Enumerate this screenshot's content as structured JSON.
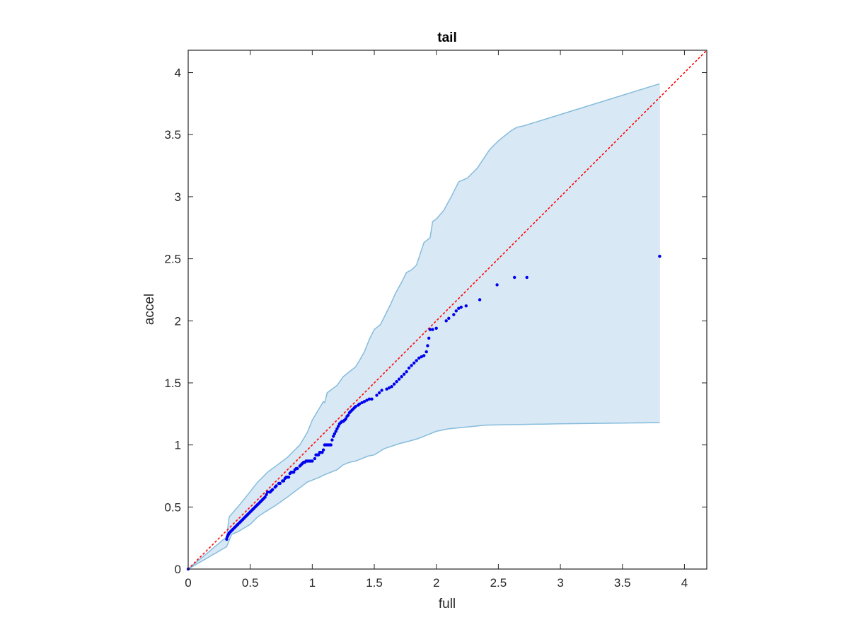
{
  "chart_data": {
    "type": "scatter",
    "title": "tail",
    "xlabel": "full",
    "ylabel": "accel",
    "xlim": [
      0,
      4.18
    ],
    "ylim": [
      0,
      4.18
    ],
    "xticks": [
      0,
      0.5,
      1,
      1.5,
      2,
      2.5,
      3,
      3.5,
      4
    ],
    "yticks": [
      0,
      0.5,
      1,
      1.5,
      2,
      2.5,
      3,
      3.5,
      4
    ],
    "xtick_labels": [
      "0",
      "0.5",
      "1",
      "1.5",
      "2",
      "2.5",
      "3",
      "3.5",
      "4"
    ],
    "ytick_labels": [
      "0",
      "0.5",
      "1",
      "1.5",
      "2",
      "2.5",
      "3",
      "3.5",
      "4"
    ],
    "grid": false,
    "colors": {
      "points": "#0000ee",
      "band_fill": "#d8e8f4",
      "band_edge": "#86bcdc",
      "reference_line": "#ff0000",
      "axes": "#262626"
    },
    "reference_line": {
      "style": "dotted",
      "x": [
        0,
        4.18
      ],
      "y": [
        0,
        4.18
      ]
    },
    "band_upper": [
      [
        0,
        0
      ],
      [
        0.31,
        0.26
      ],
      [
        0.33,
        0.42
      ],
      [
        0.4,
        0.5
      ],
      [
        0.48,
        0.6
      ],
      [
        0.56,
        0.7
      ],
      [
        0.64,
        0.78
      ],
      [
        0.72,
        0.84
      ],
      [
        0.8,
        0.9
      ],
      [
        0.9,
        1.0
      ],
      [
        0.96,
        1.1
      ],
      [
        1.0,
        1.2
      ],
      [
        1.09,
        1.35
      ],
      [
        1.1,
        1.34
      ],
      [
        1.12,
        1.42
      ],
      [
        1.2,
        1.48
      ],
      [
        1.25,
        1.55
      ],
      [
        1.35,
        1.63
      ],
      [
        1.38,
        1.68
      ],
      [
        1.42,
        1.75
      ],
      [
        1.46,
        1.85
      ],
      [
        1.5,
        1.93
      ],
      [
        1.55,
        1.97
      ],
      [
        1.63,
        2.13
      ],
      [
        1.67,
        2.22
      ],
      [
        1.72,
        2.31
      ],
      [
        1.76,
        2.39
      ],
      [
        1.8,
        2.41
      ],
      [
        1.84,
        2.45
      ],
      [
        1.9,
        2.63
      ],
      [
        1.95,
        2.67
      ],
      [
        1.97,
        2.8
      ],
      [
        2.0,
        2.82
      ],
      [
        2.06,
        2.89
      ],
      [
        2.12,
        3.0
      ],
      [
        2.18,
        3.12
      ],
      [
        2.25,
        3.15
      ],
      [
        2.33,
        3.23
      ],
      [
        2.43,
        3.38
      ],
      [
        2.5,
        3.45
      ],
      [
        2.6,
        3.53
      ],
      [
        2.65,
        3.56
      ],
      [
        2.7,
        3.57
      ],
      [
        3.8,
        3.91
      ]
    ],
    "band_lower": [
      [
        0,
        0
      ],
      [
        0.31,
        0.18
      ],
      [
        0.35,
        0.28
      ],
      [
        0.4,
        0.3
      ],
      [
        0.45,
        0.33
      ],
      [
        0.5,
        0.36
      ],
      [
        0.56,
        0.42
      ],
      [
        0.62,
        0.46
      ],
      [
        0.7,
        0.51
      ],
      [
        0.8,
        0.58
      ],
      [
        0.88,
        0.64
      ],
      [
        0.96,
        0.7
      ],
      [
        1.06,
        0.74
      ],
      [
        1.1,
        0.76
      ],
      [
        1.2,
        0.8
      ],
      [
        1.25,
        0.84
      ],
      [
        1.3,
        0.86
      ],
      [
        1.35,
        0.87
      ],
      [
        1.4,
        0.89
      ],
      [
        1.45,
        0.91
      ],
      [
        1.5,
        0.92
      ],
      [
        1.58,
        0.97
      ],
      [
        1.64,
        0.99
      ],
      [
        1.7,
        1.01
      ],
      [
        1.78,
        1.03
      ],
      [
        1.85,
        1.05
      ],
      [
        1.9,
        1.07
      ],
      [
        1.95,
        1.09
      ],
      [
        2.0,
        1.11
      ],
      [
        2.1,
        1.13
      ],
      [
        2.4,
        1.16
      ],
      [
        3.0,
        1.17
      ],
      [
        3.8,
        1.18
      ]
    ],
    "points": [
      [
        0.0,
        0.0
      ],
      [
        0.31,
        0.24
      ],
      [
        0.315,
        0.26
      ],
      [
        0.32,
        0.27
      ],
      [
        0.325,
        0.28
      ],
      [
        0.33,
        0.29
      ],
      [
        0.34,
        0.3
      ],
      [
        0.35,
        0.31
      ],
      [
        0.36,
        0.32
      ],
      [
        0.37,
        0.33
      ],
      [
        0.38,
        0.34
      ],
      [
        0.39,
        0.35
      ],
      [
        0.4,
        0.36
      ],
      [
        0.41,
        0.37
      ],
      [
        0.42,
        0.38
      ],
      [
        0.43,
        0.39
      ],
      [
        0.44,
        0.4
      ],
      [
        0.45,
        0.41
      ],
      [
        0.46,
        0.42
      ],
      [
        0.47,
        0.43
      ],
      [
        0.48,
        0.44
      ],
      [
        0.49,
        0.45
      ],
      [
        0.5,
        0.46
      ],
      [
        0.51,
        0.47
      ],
      [
        0.52,
        0.48
      ],
      [
        0.53,
        0.49
      ],
      [
        0.54,
        0.5
      ],
      [
        0.55,
        0.51
      ],
      [
        0.56,
        0.52
      ],
      [
        0.57,
        0.53
      ],
      [
        0.58,
        0.54
      ],
      [
        0.59,
        0.55
      ],
      [
        0.6,
        0.56
      ],
      [
        0.61,
        0.57
      ],
      [
        0.62,
        0.58
      ],
      [
        0.63,
        0.6
      ],
      [
        0.64,
        0.62
      ],
      [
        0.66,
        0.62
      ],
      [
        0.67,
        0.63
      ],
      [
        0.68,
        0.64
      ],
      [
        0.7,
        0.66
      ],
      [
        0.71,
        0.67
      ],
      [
        0.73,
        0.69
      ],
      [
        0.74,
        0.69
      ],
      [
        0.76,
        0.71
      ],
      [
        0.77,
        0.71
      ],
      [
        0.78,
        0.73
      ],
      [
        0.79,
        0.74
      ],
      [
        0.8,
        0.74
      ],
      [
        0.81,
        0.74
      ],
      [
        0.82,
        0.77
      ],
      [
        0.83,
        0.78
      ],
      [
        0.84,
        0.78
      ],
      [
        0.85,
        0.78
      ],
      [
        0.86,
        0.8
      ],
      [
        0.87,
        0.81
      ],
      [
        0.88,
        0.81
      ],
      [
        0.9,
        0.83
      ],
      [
        0.91,
        0.84
      ],
      [
        0.92,
        0.85
      ],
      [
        0.93,
        0.86
      ],
      [
        0.94,
        0.86
      ],
      [
        0.95,
        0.87
      ],
      [
        0.96,
        0.87
      ],
      [
        0.97,
        0.87
      ],
      [
        0.98,
        0.87
      ],
      [
        0.99,
        0.87
      ],
      [
        1.0,
        0.87
      ],
      [
        1.02,
        0.89
      ],
      [
        1.03,
        0.92
      ],
      [
        1.04,
        0.92
      ],
      [
        1.05,
        0.92
      ],
      [
        1.06,
        0.94
      ],
      [
        1.07,
        0.94
      ],
      [
        1.08,
        0.94
      ],
      [
        1.09,
        0.96
      ],
      [
        1.1,
        1.0
      ],
      [
        1.11,
        1.0
      ],
      [
        1.12,
        1.0
      ],
      [
        1.13,
        1.0
      ],
      [
        1.14,
        1.0
      ],
      [
        1.15,
        1.0
      ],
      [
        1.16,
        1.04
      ],
      [
        1.17,
        1.07
      ],
      [
        1.18,
        1.09
      ],
      [
        1.19,
        1.11
      ],
      [
        1.2,
        1.13
      ],
      [
        1.21,
        1.15
      ],
      [
        1.22,
        1.17
      ],
      [
        1.23,
        1.18
      ],
      [
        1.24,
        1.19
      ],
      [
        1.25,
        1.19
      ],
      [
        1.26,
        1.2
      ],
      [
        1.27,
        1.21
      ],
      [
        1.28,
        1.23
      ],
      [
        1.29,
        1.24
      ],
      [
        1.3,
        1.26
      ],
      [
        1.31,
        1.27
      ],
      [
        1.32,
        1.28
      ],
      [
        1.33,
        1.29
      ],
      [
        1.34,
        1.3
      ],
      [
        1.35,
        1.31
      ],
      [
        1.37,
        1.32
      ],
      [
        1.38,
        1.33
      ],
      [
        1.4,
        1.34
      ],
      [
        1.42,
        1.35
      ],
      [
        1.44,
        1.36
      ],
      [
        1.46,
        1.37
      ],
      [
        1.48,
        1.37
      ],
      [
        1.52,
        1.4
      ],
      [
        1.54,
        1.42
      ],
      [
        1.56,
        1.44
      ],
      [
        1.6,
        1.45
      ],
      [
        1.62,
        1.46
      ],
      [
        1.64,
        1.47
      ],
      [
        1.66,
        1.49
      ],
      [
        1.68,
        1.51
      ],
      [
        1.7,
        1.53
      ],
      [
        1.72,
        1.55
      ],
      [
        1.74,
        1.57
      ],
      [
        1.76,
        1.59
      ],
      [
        1.78,
        1.62
      ],
      [
        1.8,
        1.64
      ],
      [
        1.82,
        1.66
      ],
      [
        1.84,
        1.68
      ],
      [
        1.86,
        1.7
      ],
      [
        1.88,
        1.71
      ],
      [
        1.9,
        1.72
      ],
      [
        1.92,
        1.75
      ],
      [
        1.93,
        1.8
      ],
      [
        1.94,
        1.86
      ],
      [
        1.95,
        1.93
      ],
      [
        1.97,
        1.93
      ],
      [
        2.0,
        1.94
      ],
      [
        2.08,
        2.0
      ],
      [
        2.1,
        2.02
      ],
      [
        2.14,
        2.05
      ],
      [
        2.16,
        2.08
      ],
      [
        2.18,
        2.1
      ],
      [
        2.2,
        2.11
      ],
      [
        2.24,
        2.12
      ],
      [
        2.35,
        2.17
      ],
      [
        2.49,
        2.29
      ],
      [
        2.63,
        2.35
      ],
      [
        2.73,
        2.35
      ],
      [
        3.8,
        2.52
      ]
    ]
  }
}
